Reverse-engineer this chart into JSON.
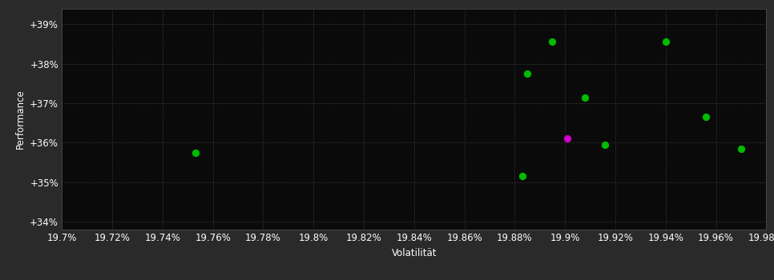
{
  "background_color": "#2a2a2a",
  "plot_bg_color": "#0a0a0a",
  "grid_color": "#404040",
  "text_color": "#ffffff",
  "xlabel": "Volatilität",
  "ylabel": "Performance",
  "xlim": [
    19.7,
    19.98
  ],
  "ylim": [
    33.8,
    39.4
  ],
  "xtick_vals": [
    19.7,
    19.72,
    19.74,
    19.76,
    19.78,
    19.8,
    19.82,
    19.84,
    19.86,
    19.88,
    19.9,
    19.92,
    19.94,
    19.96,
    19.98
  ],
  "xtick_labels": [
    "19.7%",
    "19.72%",
    "19.74%",
    "19.76%",
    "19.78%",
    "19.8%",
    "19.82%",
    "19.84%",
    "19.86%",
    "19.88%",
    "19.9%",
    "19.92%",
    "19.94%",
    "19.96%",
    "19.98%"
  ],
  "ytick_vals": [
    34,
    35,
    36,
    37,
    38,
    39
  ],
  "ytick_labels": [
    "+34%",
    "+35%",
    "+36%",
    "+37%",
    "+38%",
    "+39%"
  ],
  "green_points": [
    [
      19.753,
      35.75
    ],
    [
      19.885,
      37.75
    ],
    [
      19.895,
      38.55
    ],
    [
      19.908,
      37.15
    ],
    [
      19.916,
      35.95
    ],
    [
      19.94,
      38.55
    ],
    [
      19.956,
      36.65
    ],
    [
      19.97,
      35.85
    ],
    [
      19.883,
      35.15
    ]
  ],
  "magenta_points": [
    [
      19.901,
      36.1
    ]
  ],
  "green_color": "#00bb00",
  "magenta_color": "#cc00cc",
  "marker_size": 45,
  "font_size": 8.5
}
